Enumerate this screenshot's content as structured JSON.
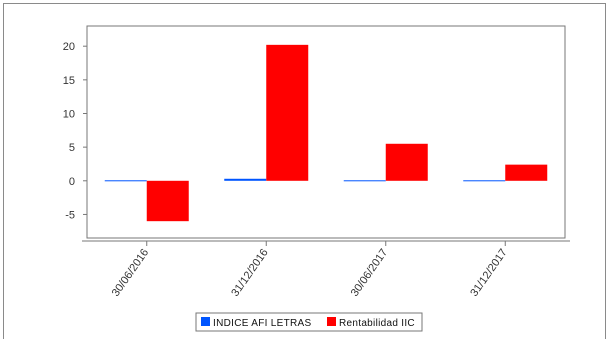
{
  "chart_data": {
    "type": "bar",
    "categories": [
      "30/06/2016",
      "31/12/2016",
      "30/06/2017",
      "31/12/2017"
    ],
    "series": [
      {
        "name": "INDICE AFI LETRAS",
        "color": "#0055ff",
        "values": [
          0.0,
          0.3,
          -0.1,
          0.1
        ]
      },
      {
        "name": "Rentabilidad IIC",
        "color": "#ff0000",
        "values": [
          -6.0,
          20.2,
          5.5,
          2.4
        ]
      }
    ],
    "yticks": [
      -5,
      0,
      5,
      10,
      15,
      20
    ],
    "ylim": [
      -8.5,
      23
    ],
    "grid": false,
    "legend_position": "bottom-center"
  }
}
